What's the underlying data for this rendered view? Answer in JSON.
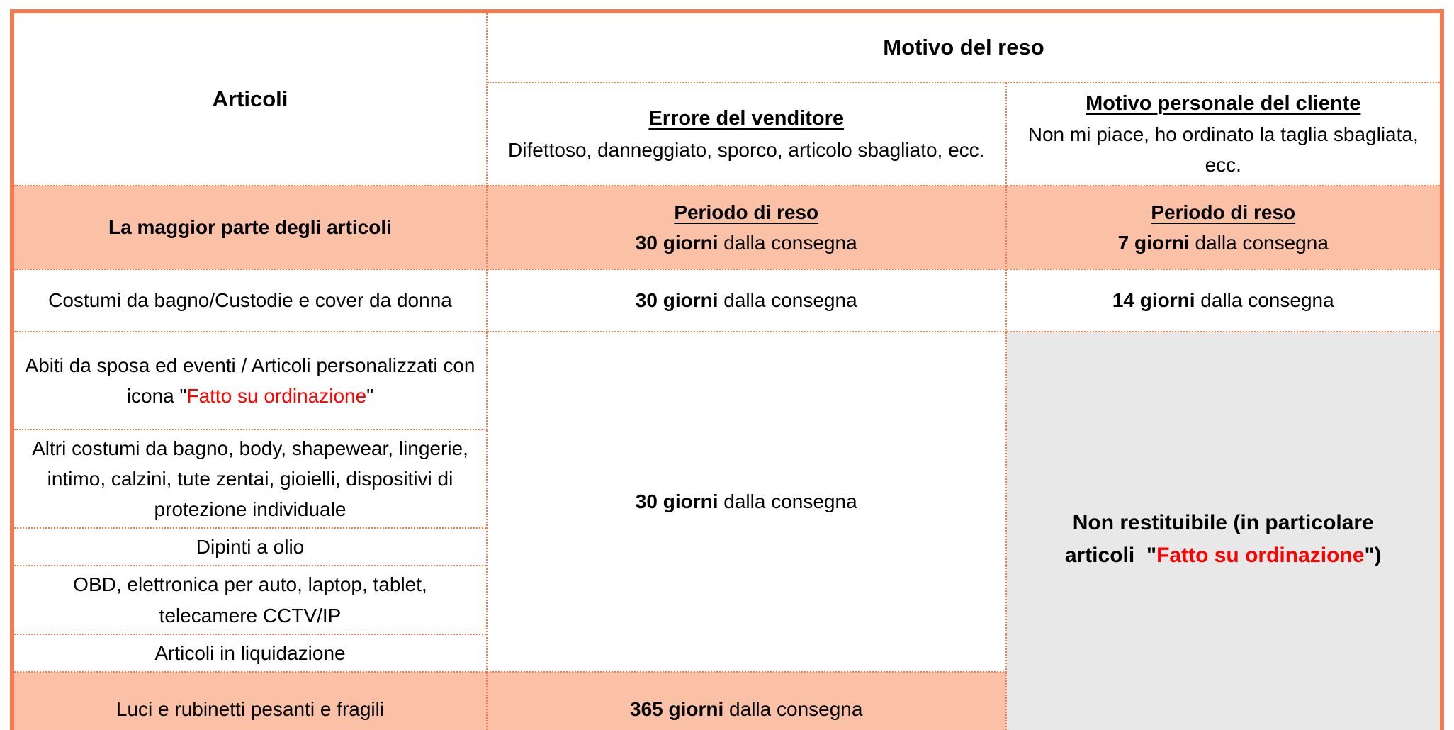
{
  "header": {
    "articoli": "Articoli",
    "motivo_del_reso": "Motivo del reso",
    "seller": {
      "title": "Errore del venditore",
      "subtitle": "Difettoso, danneggiato, sporco, articolo sbagliato, ecc."
    },
    "customer": {
      "title": "Motivo personale del cliente",
      "subtitle": "Non mi piace, ho ordinato la taglia sbagliata, ecc."
    }
  },
  "rows": {
    "most_items": {
      "label": "La maggior parte degli articoli",
      "seller_period_title": "Periodo di reso",
      "seller_days": "30 giorni",
      "seller_rest": " dalla consegna",
      "customer_period_title": "Periodo di reso",
      "customer_days": "7 giorni",
      "customer_rest": " dalla consegna"
    },
    "swimwear": {
      "label": "Costumi da bagno/Custodie e cover da donna",
      "seller_days": "30 giorni",
      "seller_rest": " dalla consegna",
      "customer_days": "14 giorni",
      "customer_rest": " dalla consegna"
    },
    "merged": {
      "items": [
        {
          "pre": "Abiti da sposa ed eventi / Articoli personalizzati con icona \"",
          "red": "Fatto su ordinazione",
          "post": "\""
        },
        {
          "text": "Altri costumi da bagno, body, shapewear, lingerie, intimo, calzini, tute zentai, gioielli, dispositivi di protezione individuale"
        },
        {
          "text": "Dipinti a olio"
        },
        {
          "text": "OBD, elettronica per auto, laptop, tablet, telecamere CCTV/IP"
        },
        {
          "text": "Articoli in liquidazione"
        }
      ],
      "seller_days": "30 giorni",
      "seller_rest": " dalla consegna",
      "customer_pre": "Non restituibile (in particolare articoli  \"",
      "customer_red": "Fatto su ordinazione",
      "customer_post": "\")"
    },
    "lights": {
      "label": "Luci e rubinetti pesanti e fragili",
      "seller_days": "365 giorni",
      "seller_rest": " dalla consegna"
    }
  },
  "colors": {
    "border": "#F57A4E",
    "salmon_bg": "#FBC1A7",
    "gray_bg": "#E8E8E8",
    "red_text": "#FF0000"
  }
}
